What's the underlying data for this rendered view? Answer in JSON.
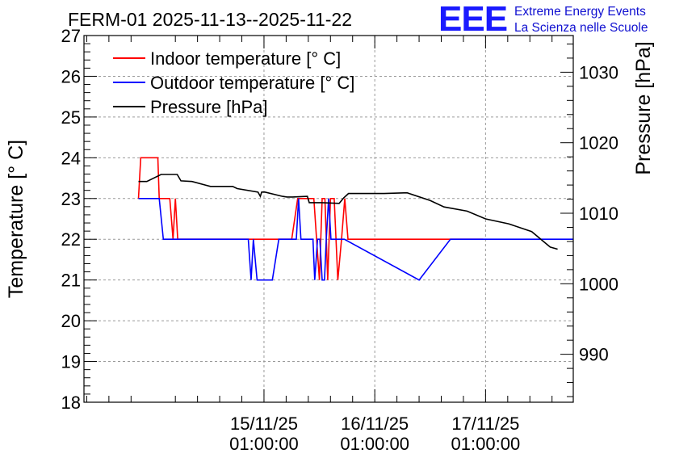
{
  "chart_data": {
    "type": "line",
    "title": "FERM-01 2025-11-13--2025-11-22",
    "ylabel": "Temperature [° C]",
    "y2label": "Pressure [hPa]",
    "ylim": [
      18,
      27
    ],
    "y2lim": [
      983.2,
      1035.2
    ],
    "yticks": [
      "18",
      "19",
      "20",
      "21",
      "22",
      "23",
      "24",
      "25",
      "26",
      "27"
    ],
    "y2ticks": [
      "990",
      "1000",
      "1010",
      "1020",
      "1030"
    ],
    "xunit": "hours since 2025-11-14 01:00:00",
    "xlim": [
      -15,
      91
    ],
    "xticks": [
      {
        "x": 24,
        "date": "15/11/25",
        "time": "01:00:00"
      },
      {
        "x": 48,
        "date": "16/11/25",
        "time": "01:00:00"
      },
      {
        "x": 72,
        "date": "17/11/25",
        "time": "01:00:00"
      }
    ],
    "grid": true,
    "legend_position": "top-left",
    "series": [
      {
        "name": "Indoor temperature [° C]",
        "axis": "left",
        "color": "#ff0000",
        "x": [
          -3.2,
          -2.7,
          -2.1,
          1.0,
          1.3,
          3.6,
          4.3,
          4.8,
          5.3,
          6.0,
          6.8,
          20,
          26,
          29,
          30,
          31.3,
          32.0,
          33,
          34.8,
          35.4,
          36.0,
          36.6,
          37.2,
          37.8,
          38.4,
          39.2,
          40.0,
          40.8,
          41.5,
          42.2,
          42.9,
          71.5
        ],
        "values": [
          23,
          24,
          24,
          24,
          23,
          23,
          22,
          23,
          22,
          22,
          22,
          22,
          22,
          22,
          22,
          23,
          23,
          23,
          23,
          22,
          21,
          23,
          23,
          21,
          23,
          23,
          21,
          22,
          23,
          22,
          22,
          22
        ]
      },
      {
        "name": "Outdoor temperature [° C]",
        "axis": "left",
        "color": "#0000ff",
        "x": [
          -3.2,
          1.3,
          2.2,
          19.0,
          20,
          20.6,
          21.2,
          21.7,
          22.5,
          25.8,
          27.2,
          29.8,
          30.3,
          31.0,
          31.5,
          32.0,
          32.5,
          34.6,
          35.0,
          35.6,
          36.1,
          36.6,
          37.1,
          37.5,
          38.0,
          38.5,
          39.5,
          40.0,
          40.5,
          41.4,
          57.6,
          64.4,
          91
        ],
        "values": [
          23,
          23,
          22,
          22,
          22,
          22,
          21,
          22,
          21,
          21,
          22,
          22,
          22,
          22,
          23,
          22,
          22,
          22,
          21,
          22,
          22,
          21,
          21,
          22,
          23,
          22,
          22,
          22,
          22,
          22,
          21,
          22,
          22
        ]
      },
      {
        "name": "Pressure [hPa]",
        "axis": "right",
        "color": "#000000",
        "x": [
          -3.2,
          -1.4,
          1.7,
          2.8,
          5.2,
          6.0,
          8.4,
          12.4,
          13.5,
          14.4,
          17.2,
          18.2,
          22.7,
          23.2,
          23.5,
          24.2,
          28.0,
          29.0,
          30.2,
          33.4,
          33.8,
          36.5,
          40.3,
          41.3,
          42.3,
          45,
          50,
          55,
          60,
          63,
          68,
          72,
          77,
          82,
          86,
          87.6
        ],
        "values": [
          1014.5,
          1014.5,
          1015.5,
          1015.5,
          1015.5,
          1014.6,
          1014.5,
          1013.8,
          1013.8,
          1013.8,
          1013.8,
          1013.5,
          1013.0,
          1012.4,
          1013.0,
          1013.0,
          1012.4,
          1012.3,
          1012.3,
          1012.4,
          1011.5,
          1011.5,
          1011.4,
          1012.2,
          1012.8,
          1012.8,
          1012.8,
          1012.9,
          1011.8,
          1010.9,
          1010.3,
          1009.2,
          1008.5,
          1007.4,
          1005.2,
          1004.9
        ]
      }
    ]
  },
  "logo": {
    "mark": "EEE",
    "line1": "Extreme Energy Events",
    "line2": "La Scienza nelle Scuole"
  }
}
